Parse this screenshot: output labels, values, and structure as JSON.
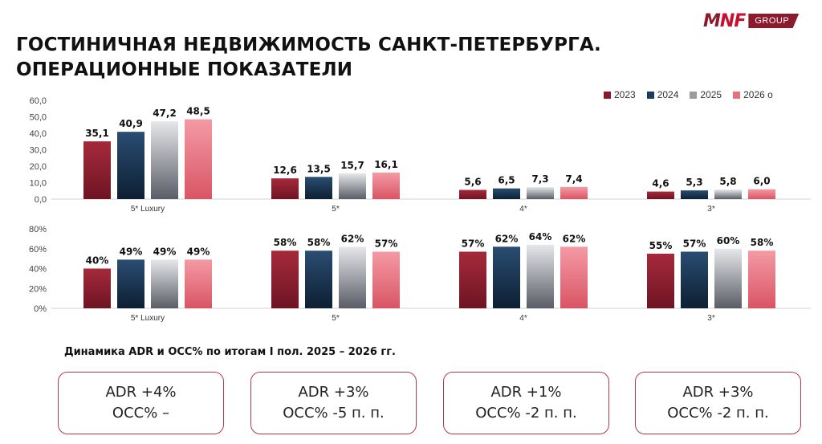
{
  "logo": {
    "mark_left": "M",
    "mark_right": "NF",
    "group": "GROUP"
  },
  "title": {
    "line1": "ГОСТИНИЧНАЯ НЕДВИЖИМОСТЬ САНКТ-ПЕТЕРБУРГА.",
    "line2": "ОПЕРАЦИОННЫЕ ПОКАЗАТЕЛИ"
  },
  "colors": {
    "2023": "#8b1a2b",
    "2024": "#1b3a5c",
    "2025": "#9a9ca3",
    "2026": "#e8717e"
  },
  "chart_data": [
    {
      "type": "bar",
      "categories": [
        "5* Luxury",
        "5*",
        "4*",
        "3*"
      ],
      "series": [
        {
          "name": "2023",
          "values": [
            35.1,
            12.6,
            5.6,
            4.6
          ],
          "labels": [
            "35,1",
            "12,6",
            "5,6",
            "4,6"
          ]
        },
        {
          "name": "2024",
          "values": [
            40.9,
            13.5,
            6.5,
            5.3
          ],
          "labels": [
            "40,9",
            "13,5",
            "6,5",
            "5,3"
          ]
        },
        {
          "name": "2025",
          "values": [
            47.2,
            15.7,
            7.3,
            5.8
          ],
          "labels": [
            "47,2",
            "15,7",
            "7,3",
            "5,8"
          ]
        },
        {
          "name": "2026 о",
          "values": [
            48.5,
            16.1,
            7.4,
            6.0
          ],
          "labels": [
            "48,5",
            "16,1",
            "7,4",
            "6,0"
          ]
        }
      ],
      "ylim": [
        0,
        60
      ],
      "yticks": [
        "0,0",
        "10,0",
        "20,0",
        "30,0",
        "40,0",
        "50,0",
        "60,0"
      ],
      "legend_position": "top-right"
    },
    {
      "type": "bar",
      "categories": [
        "5* Luxury",
        "5*",
        "4*",
        "3*"
      ],
      "series": [
        {
          "name": "2023",
          "values": [
            40,
            58,
            57,
            55
          ],
          "labels": [
            "40%",
            "58%",
            "57%",
            "55%"
          ]
        },
        {
          "name": "2024",
          "values": [
            49,
            58,
            62,
            57
          ],
          "labels": [
            "49%",
            "58%",
            "62%",
            "57%"
          ]
        },
        {
          "name": "2025",
          "values": [
            49,
            62,
            64,
            60
          ],
          "labels": [
            "49%",
            "62%",
            "64%",
            "60%"
          ]
        },
        {
          "name": "2026 о",
          "values": [
            49,
            57,
            62,
            58
          ],
          "labels": [
            "49%",
            "57%",
            "62%",
            "58%"
          ]
        }
      ],
      "ylim": [
        0,
        80
      ],
      "yticks": [
        "0%",
        "20%",
        "40%",
        "60%",
        "80%"
      ]
    }
  ],
  "subtitle": "Динамика ADR и OCC% по итогам I пол. 2025 – 2026 гг.",
  "boxes": [
    {
      "line1": "ADR +4%",
      "line2": "OCC% –"
    },
    {
      "line1": "ADR +3%",
      "line2": "OCC% -5 п. п."
    },
    {
      "line1": "ADR +1%",
      "line2": "OCC% -2 п. п."
    },
    {
      "line1": "ADR +3%",
      "line2": "OCC% -2 п. п."
    }
  ]
}
